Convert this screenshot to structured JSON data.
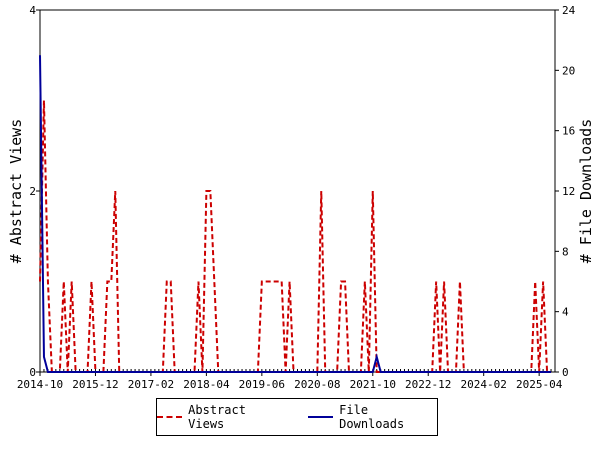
{
  "chart_data": {
    "type": "line",
    "xlabel": "",
    "ylabel": "# Abstract Views",
    "y2label": "# File Downloads",
    "x_tick_labels": [
      "2014-10",
      "2015-12",
      "2017-02",
      "2018-04",
      "2019-06",
      "2020-08",
      "2021-10",
      "2022-12",
      "2024-02",
      "2025-04"
    ],
    "x_tick_months": [
      0,
      14,
      28,
      42,
      56,
      70,
      84,
      98,
      112,
      126
    ],
    "total_months": 130,
    "ylim": [
      0,
      4
    ],
    "y_ticks": [
      0,
      2,
      4
    ],
    "y2lim": [
      0,
      24
    ],
    "y2_ticks": [
      0,
      4,
      8,
      12,
      16,
      20,
      24
    ],
    "grid": false,
    "legend_position": "bottom",
    "series": [
      {
        "name": "Abstract Views",
        "axis": "left",
        "color": "#cc0000",
        "style": "dashed",
        "values": [
          1,
          3,
          1,
          0,
          0,
          0,
          1,
          0,
          1,
          0,
          0,
          0,
          0,
          1,
          0,
          0,
          0,
          1,
          1,
          2,
          0,
          0,
          0,
          0,
          0,
          0,
          0,
          0,
          0,
          0,
          0,
          0,
          1,
          1,
          0,
          0,
          0,
          0,
          0,
          0,
          1,
          0,
          2,
          2,
          1,
          0,
          0,
          0,
          0,
          0,
          0,
          0,
          0,
          0,
          0,
          0,
          1,
          1,
          1,
          1,
          1,
          1,
          0,
          1,
          0,
          0,
          0,
          0,
          0,
          0,
          0,
          2,
          0,
          0,
          0,
          0,
          1,
          1,
          0,
          0,
          0,
          0,
          1,
          0,
          2,
          0,
          0,
          0,
          0,
          0,
          0,
          0,
          0,
          0,
          0,
          0,
          0,
          0,
          0,
          0,
          1,
          0,
          1,
          0,
          0,
          0,
          1,
          0,
          0,
          0,
          0,
          0,
          0,
          0,
          0,
          0,
          0,
          0,
          0,
          0,
          0,
          0,
          0,
          0,
          0,
          1,
          0,
          1,
          0,
          0
        ]
      },
      {
        "name": "File Downloads",
        "axis": "right",
        "color": "#000099",
        "style": "solid",
        "values": [
          21,
          1,
          0,
          0,
          0,
          0,
          0,
          0,
          0,
          0,
          0,
          0,
          0,
          0,
          0,
          0,
          0,
          0,
          0,
          0,
          0,
          0,
          0,
          0,
          0,
          0,
          0,
          0,
          0,
          0,
          0,
          0,
          0,
          0,
          0,
          0,
          0,
          0,
          0,
          0,
          0,
          0,
          0,
          0,
          0,
          0,
          0,
          0,
          0,
          0,
          0,
          0,
          0,
          0,
          0,
          0,
          0,
          0,
          0,
          0,
          0,
          0,
          0,
          0,
          0,
          0,
          0,
          0,
          0,
          0,
          0,
          0,
          0,
          0,
          0,
          0,
          0,
          0,
          0,
          0,
          0,
          0,
          0,
          0,
          0,
          1,
          0,
          0,
          0,
          0,
          0,
          0,
          0,
          0,
          0,
          0,
          0,
          0,
          0,
          0,
          0,
          0,
          0,
          0,
          0,
          0,
          0,
          0,
          0,
          0,
          0,
          0,
          0,
          0,
          0,
          0,
          0,
          0,
          0,
          0,
          0,
          0,
          0,
          0,
          0,
          0,
          0,
          0,
          0,
          0
        ]
      }
    ]
  }
}
